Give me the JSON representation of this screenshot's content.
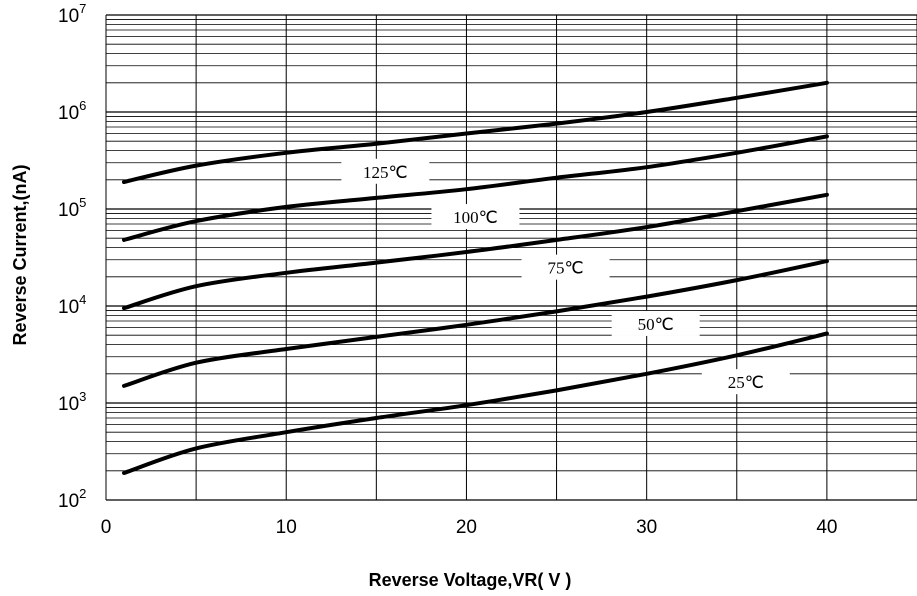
{
  "chart_data": {
    "type": "line",
    "title": "",
    "xlabel": "Reverse Voltage,VR( V )",
    "ylabel": "Reverse Current,(nA)",
    "xlim": [
      0,
      45
    ],
    "ylim": [
      100,
      10000000
    ],
    "yscale": "log",
    "grid": true,
    "x_ticks": [
      "0",
      "10",
      "20",
      "30",
      "40"
    ],
    "y_ticks": [
      {
        "base": "10",
        "exp": "2"
      },
      {
        "base": "10",
        "exp": "3"
      },
      {
        "base": "10",
        "exp": "4"
      },
      {
        "base": "10",
        "exp": "5"
      },
      {
        "base": "10",
        "exp": "6"
      },
      {
        "base": "10",
        "exp": "7"
      }
    ],
    "series": [
      {
        "name": "125℃",
        "label_at_x": 15.5,
        "x": [
          1,
          5,
          10,
          15,
          20,
          25,
          30,
          35,
          40
        ],
        "y": [
          190000,
          280000,
          380000,
          470000,
          600000,
          760000,
          1000000,
          1400000,
          2000000
        ]
      },
      {
        "name": "100℃",
        "label_at_x": 20.5,
        "x": [
          1,
          5,
          10,
          15,
          20,
          25,
          30,
          35,
          40
        ],
        "y": [
          48000,
          75000,
          105000,
          130000,
          160000,
          210000,
          270000,
          380000,
          560000
        ]
      },
      {
        "name": "75℃",
        "label_at_x": 25.5,
        "x": [
          1,
          5,
          10,
          15,
          20,
          25,
          30,
          35,
          40
        ],
        "y": [
          9500,
          16000,
          22000,
          28000,
          36000,
          48000,
          65000,
          95000,
          140000
        ]
      },
      {
        "name": "50℃",
        "label_at_x": 30.5,
        "x": [
          1,
          5,
          10,
          15,
          20,
          25,
          30,
          35,
          40
        ],
        "y": [
          1500,
          2600,
          3600,
          4800,
          6400,
          8800,
          12500,
          18500,
          29000
        ]
      },
      {
        "name": "25℃",
        "label_at_x": 35.5,
        "x": [
          1,
          5,
          10,
          15,
          20,
          25,
          30,
          35,
          40
        ],
        "y": [
          190,
          340,
          500,
          700,
          950,
          1350,
          2000,
          3100,
          5200
        ]
      }
    ]
  }
}
